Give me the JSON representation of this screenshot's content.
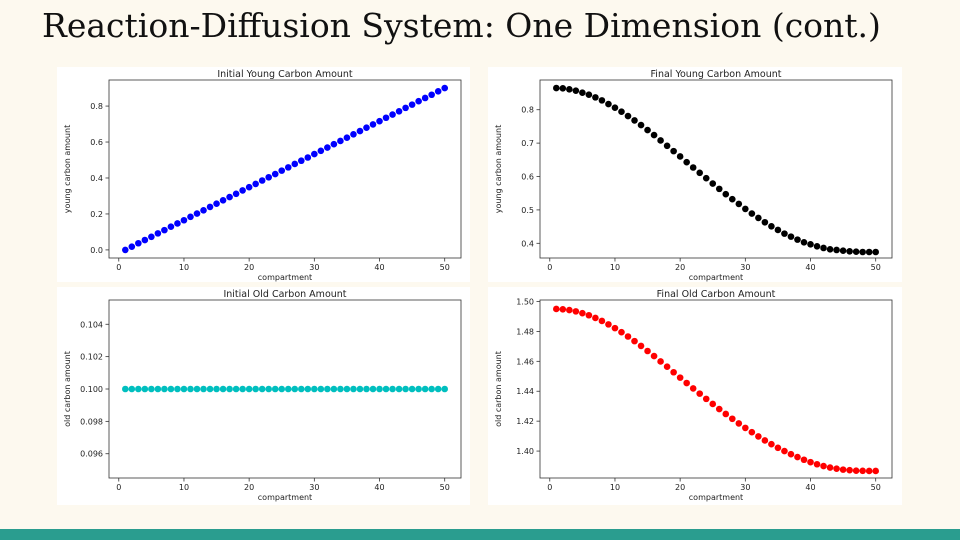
{
  "slide": {
    "title": "Reaction-Diffusion System: One Dimension (cont.)",
    "footer_color": "#2a9d8f"
  },
  "chart_data": [
    {
      "type": "scatter",
      "title": "Initial Young Carbon Amount",
      "xlabel": "compartment",
      "ylabel": "young carbon amount",
      "xlim": [
        -1.5,
        52.5
      ],
      "ylim": [
        -0.045,
        0.945
      ],
      "xticks": [
        0,
        10,
        20,
        30,
        40,
        50
      ],
      "yticks": [
        "0.0",
        "0.2",
        "0.4",
        "0.6",
        "0.8"
      ],
      "color": "#0000ff",
      "x": [
        1,
        2,
        3,
        4,
        5,
        6,
        7,
        8,
        9,
        10,
        11,
        12,
        13,
        14,
        15,
        16,
        17,
        18,
        19,
        20,
        21,
        22,
        23,
        24,
        25,
        26,
        27,
        28,
        29,
        30,
        31,
        32,
        33,
        34,
        35,
        36,
        37,
        38,
        39,
        40,
        41,
        42,
        43,
        44,
        45,
        46,
        47,
        48,
        49,
        50
      ],
      "y": [
        0.0,
        0.018,
        0.037,
        0.055,
        0.073,
        0.092,
        0.11,
        0.129,
        0.147,
        0.165,
        0.184,
        0.202,
        0.22,
        0.239,
        0.257,
        0.276,
        0.294,
        0.312,
        0.331,
        0.349,
        0.367,
        0.386,
        0.404,
        0.422,
        0.441,
        0.459,
        0.478,
        0.496,
        0.514,
        0.533,
        0.551,
        0.569,
        0.588,
        0.606,
        0.624,
        0.643,
        0.661,
        0.68,
        0.698,
        0.716,
        0.735,
        0.753,
        0.771,
        0.79,
        0.808,
        0.827,
        0.845,
        0.863,
        0.882,
        0.9
      ]
    },
    {
      "type": "scatter",
      "title": "Final Young Carbon Amount",
      "xlabel": "compartment",
      "ylabel": "young carbon amount",
      "xlim": [
        -1.5,
        52.5
      ],
      "ylim": [
        0.356,
        0.889
      ],
      "xticks": [
        0,
        10,
        20,
        30,
        40,
        50
      ],
      "yticks": [
        "0.4",
        "0.5",
        "0.6",
        "0.7",
        "0.8"
      ],
      "color": "#000000",
      "x": [
        1,
        2,
        3,
        4,
        5,
        6,
        7,
        8,
        9,
        10,
        11,
        12,
        13,
        14,
        15,
        16,
        17,
        18,
        19,
        20,
        21,
        22,
        23,
        24,
        25,
        26,
        27,
        28,
        29,
        30,
        31,
        32,
        33,
        34,
        35,
        36,
        37,
        38,
        39,
        40,
        41,
        42,
        43,
        44,
        45,
        46,
        47,
        48,
        49,
        50
      ],
      "y": [
        0.865,
        0.864,
        0.861,
        0.857,
        0.851,
        0.845,
        0.837,
        0.828,
        0.817,
        0.806,
        0.794,
        0.781,
        0.768,
        0.754,
        0.739,
        0.724,
        0.708,
        0.692,
        0.676,
        0.66,
        0.643,
        0.627,
        0.611,
        0.595,
        0.579,
        0.563,
        0.547,
        0.532,
        0.518,
        0.503,
        0.489,
        0.476,
        0.463,
        0.451,
        0.44,
        0.429,
        0.42,
        0.411,
        0.403,
        0.397,
        0.391,
        0.386,
        0.382,
        0.38,
        0.378,
        0.376,
        0.375,
        0.374,
        0.374,
        0.374
      ]
    },
    {
      "type": "scatter",
      "title": "Initial Old Carbon Amount",
      "xlabel": "compartment",
      "ylabel": "old carbon amount",
      "xlim": [
        -1.5,
        52.5
      ],
      "ylim": [
        0.0945,
        0.1055
      ],
      "xticks": [
        0,
        10,
        20,
        30,
        40,
        50
      ],
      "yticks": [
        "0.096",
        "0.098",
        "0.100",
        "0.102",
        "0.104"
      ],
      "color": "#00bfbf",
      "x": [
        1,
        2,
        3,
        4,
        5,
        6,
        7,
        8,
        9,
        10,
        11,
        12,
        13,
        14,
        15,
        16,
        17,
        18,
        19,
        20,
        21,
        22,
        23,
        24,
        25,
        26,
        27,
        28,
        29,
        30,
        31,
        32,
        33,
        34,
        35,
        36,
        37,
        38,
        39,
        40,
        41,
        42,
        43,
        44,
        45,
        46,
        47,
        48,
        49,
        50
      ],
      "y": [
        0.1,
        0.1,
        0.1,
        0.1,
        0.1,
        0.1,
        0.1,
        0.1,
        0.1,
        0.1,
        0.1,
        0.1,
        0.1,
        0.1,
        0.1,
        0.1,
        0.1,
        0.1,
        0.1,
        0.1,
        0.1,
        0.1,
        0.1,
        0.1,
        0.1,
        0.1,
        0.1,
        0.1,
        0.1,
        0.1,
        0.1,
        0.1,
        0.1,
        0.1,
        0.1,
        0.1,
        0.1,
        0.1,
        0.1,
        0.1,
        0.1,
        0.1,
        0.1,
        0.1,
        0.1,
        0.1,
        0.1,
        0.1,
        0.1,
        0.1
      ]
    },
    {
      "type": "scatter",
      "title": "Final Old Carbon Amount",
      "xlabel": "compartment",
      "ylabel": "old carbon amount",
      "xlim": [
        -1.5,
        52.5
      ],
      "ylim": [
        1.382,
        1.501
      ],
      "xticks": [
        0,
        10,
        20,
        30,
        40,
        50
      ],
      "yticks": [
        "1.40",
        "1.42",
        "1.44",
        "1.46",
        "1.48",
        "1.50"
      ],
      "color": "#ff0000",
      "x": [
        1,
        2,
        3,
        4,
        5,
        6,
        7,
        8,
        9,
        10,
        11,
        12,
        13,
        14,
        15,
        16,
        17,
        18,
        19,
        20,
        21,
        22,
        23,
        24,
        25,
        26,
        27,
        28,
        29,
        30,
        31,
        32,
        33,
        34,
        35,
        36,
        37,
        38,
        39,
        40,
        41,
        42,
        43,
        44,
        45,
        46,
        47,
        48,
        49,
        50
      ],
      "y": [
        1.495,
        1.4948,
        1.4943,
        1.4934,
        1.4922,
        1.4908,
        1.489,
        1.487,
        1.4847,
        1.4822,
        1.4795,
        1.4766,
        1.4735,
        1.4703,
        1.4669,
        1.4635,
        1.4599,
        1.4564,
        1.4527,
        1.4491,
        1.4455,
        1.4419,
        1.4384,
        1.4349,
        1.4315,
        1.4281,
        1.4248,
        1.4216,
        1.4185,
        1.4155,
        1.4126,
        1.4098,
        1.4071,
        1.4046,
        1.4022,
        1.4,
        1.3979,
        1.396,
        1.3942,
        1.3926,
        1.3912,
        1.39,
        1.389,
        1.3882,
        1.3876,
        1.3872,
        1.3869,
        1.3868,
        1.3867,
        1.3867
      ]
    }
  ]
}
